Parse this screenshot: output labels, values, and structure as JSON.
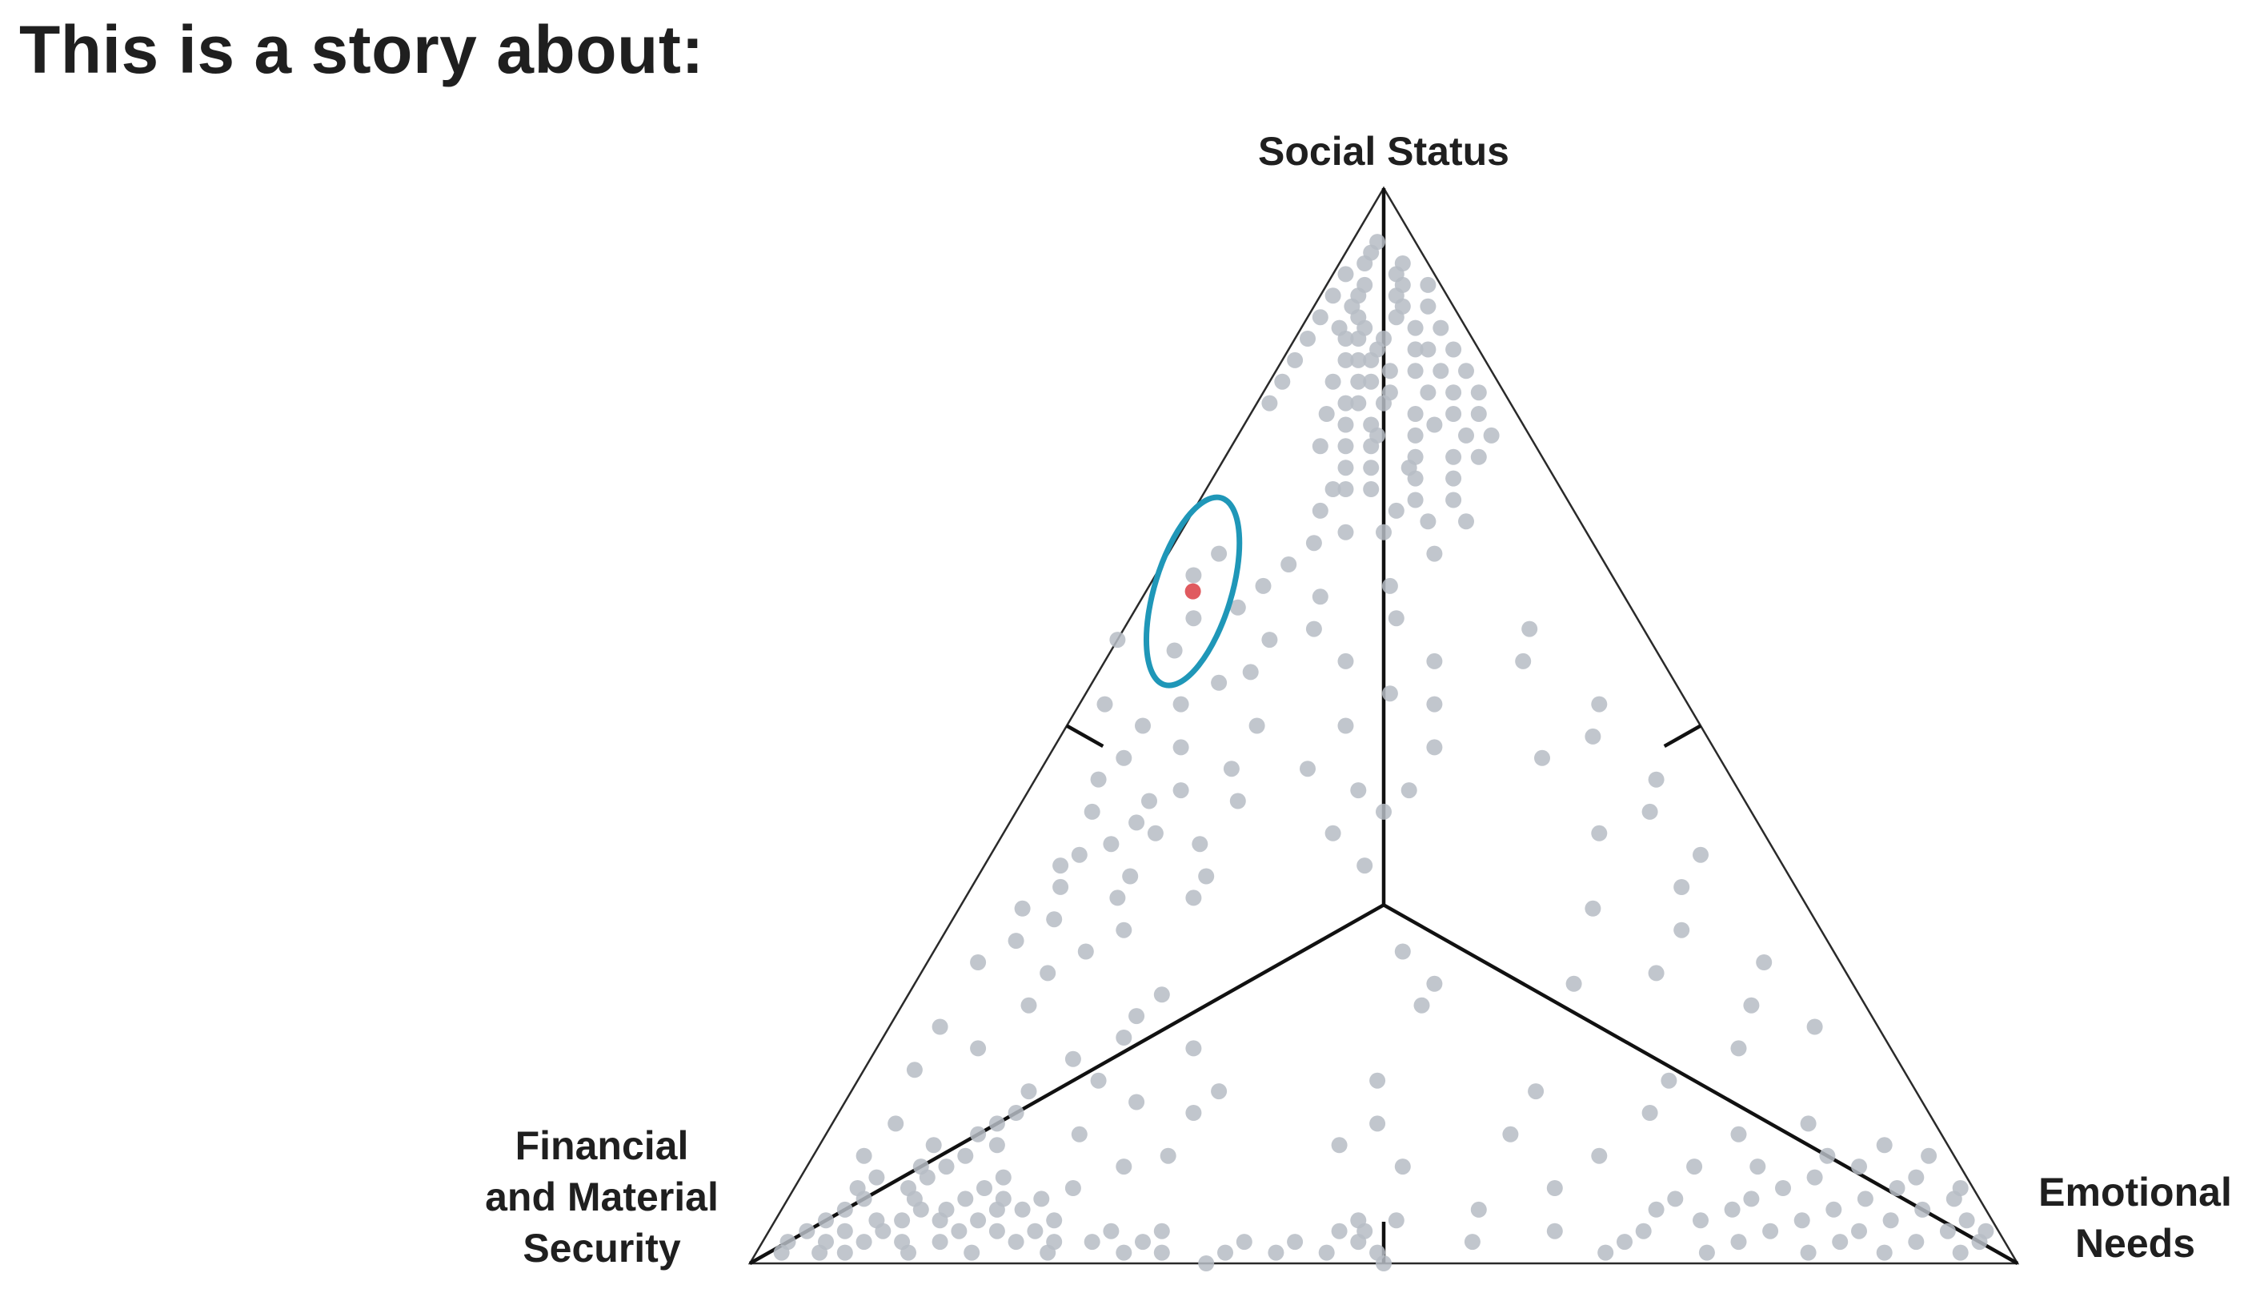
{
  "page": {
    "title": "This is a story about:"
  },
  "chart_data": {
    "type": "scatter",
    "subtype": "ternary",
    "title": "",
    "vertices": {
      "top": [
        "Social Status"
      ],
      "left": [
        "Financial",
        "and Material",
        "Security"
      ],
      "right": [
        "Emotional",
        "Needs"
      ]
    },
    "coordinate_note": "each point given as [Social Status, Financial and Material Security, Emotional Needs] shares summing to 1",
    "colors": {
      "points": "#b6bcc4",
      "highlight": "#e05a5f",
      "ellipse": "#1f97b8",
      "axes": "#111111"
    },
    "highlight_point": [
      0.625,
      0.338,
      0.037
    ],
    "confidence_ellipse": {
      "center": [
        0.625,
        0.338,
        0.037
      ]
    },
    "points": [
      [
        0.95,
        0.03,
        0.02
      ],
      [
        0.93,
        0.05,
        0.02
      ],
      [
        0.92,
        0.03,
        0.05
      ],
      [
        0.91,
        0.06,
        0.03
      ],
      [
        0.9,
        0.04,
        0.06
      ],
      [
        0.89,
        0.08,
        0.03
      ],
      [
        0.88,
        0.05,
        0.07
      ],
      [
        0.87,
        0.1,
        0.03
      ],
      [
        0.86,
        0.07,
        0.07
      ],
      [
        0.85,
        0.05,
        0.1
      ],
      [
        0.84,
        0.11,
        0.05
      ],
      [
        0.83,
        0.08,
        0.09
      ],
      [
        0.82,
        0.13,
        0.05
      ],
      [
        0.81,
        0.06,
        0.13
      ],
      [
        0.8,
        0.1,
        0.1
      ],
      [
        0.79,
        0.15,
        0.06
      ],
      [
        0.78,
        0.07,
        0.15
      ],
      [
        0.77,
        0.12,
        0.11
      ],
      [
        0.76,
        0.17,
        0.07
      ],
      [
        0.75,
        0.1,
        0.15
      ],
      [
        0.74,
        0.14,
        0.12
      ],
      [
        0.73,
        0.08,
        0.19
      ],
      [
        0.72,
        0.18,
        0.1
      ],
      [
        0.71,
        0.12,
        0.17
      ],
      [
        0.7,
        0.2,
        0.1
      ],
      [
        0.69,
        0.09,
        0.22
      ],
      [
        0.68,
        0.16,
        0.16
      ],
      [
        0.67,
        0.22,
        0.11
      ],
      [
        0.66,
        0.13,
        0.21
      ],
      [
        0.94,
        0.04,
        0.02
      ],
      [
        0.92,
        0.07,
        0.01
      ],
      [
        0.9,
        0.09,
        0.01
      ],
      [
        0.88,
        0.11,
        0.01
      ],
      [
        0.86,
        0.13,
        0.01
      ],
      [
        0.84,
        0.15,
        0.01
      ],
      [
        0.82,
        0.17,
        0.01
      ],
      [
        0.8,
        0.19,
        0.01
      ],
      [
        0.89,
        0.02,
        0.09
      ],
      [
        0.87,
        0.02,
        0.11
      ],
      [
        0.85,
        0.02,
        0.13
      ],
      [
        0.83,
        0.02,
        0.15
      ],
      [
        0.81,
        0.02,
        0.17
      ],
      [
        0.79,
        0.03,
        0.18
      ],
      [
        0.77,
        0.03,
        0.2
      ],
      [
        0.91,
        0.01,
        0.08
      ],
      [
        0.86,
        0.1,
        0.04
      ],
      [
        0.84,
        0.09,
        0.07
      ],
      [
        0.82,
        0.1,
        0.08
      ],
      [
        0.8,
        0.12,
        0.08
      ],
      [
        0.78,
        0.12,
        0.1
      ],
      [
        0.76,
        0.13,
        0.11
      ],
      [
        0.74,
        0.11,
        0.15
      ],
      [
        0.72,
        0.15,
        0.13
      ],
      [
        0.7,
        0.14,
        0.16
      ],
      [
        0.68,
        0.19,
        0.13
      ],
      [
        0.87,
        0.08,
        0.05
      ],
      [
        0.85,
        0.08,
        0.07
      ],
      [
        0.83,
        0.06,
        0.11
      ],
      [
        0.81,
        0.09,
        0.1
      ],
      [
        0.79,
        0.08,
        0.13
      ],
      [
        0.77,
        0.09,
        0.14
      ],
      [
        0.75,
        0.07,
        0.18
      ],
      [
        0.73,
        0.11,
        0.16
      ],
      [
        0.71,
        0.09,
        0.2
      ],
      [
        0.69,
        0.12,
        0.19
      ],
      [
        0.93,
        0.02,
        0.05
      ],
      [
        0.91,
        0.03,
        0.06
      ],
      [
        0.89,
        0.04,
        0.07
      ],
      [
        0.87,
        0.04,
        0.09
      ],
      [
        0.85,
        0.04,
        0.11
      ],
      [
        0.83,
        0.04,
        0.13
      ],
      [
        0.81,
        0.04,
        0.15
      ],
      [
        0.79,
        0.05,
        0.16
      ],
      [
        0.77,
        0.05,
        0.18
      ],
      [
        0.75,
        0.05,
        0.2
      ],
      [
        0.9,
        0.07,
        0.03
      ],
      [
        0.88,
        0.08,
        0.04
      ],
      [
        0.86,
        0.09,
        0.05
      ],
      [
        0.84,
        0.1,
        0.06
      ],
      [
        0.82,
        0.11,
        0.07
      ],
      [
        0.8,
        0.13,
        0.07
      ],
      [
        0.78,
        0.14,
        0.08
      ],
      [
        0.76,
        0.15,
        0.09
      ],
      [
        0.74,
        0.16,
        0.1
      ],
      [
        0.72,
        0.17,
        0.11
      ],
      [
        0.66,
        0.3,
        0.04
      ],
      [
        0.64,
        0.33,
        0.03
      ],
      [
        0.63,
        0.28,
        0.09
      ],
      [
        0.61,
        0.31,
        0.08
      ],
      [
        0.6,
        0.35,
        0.05
      ],
      [
        0.58,
        0.3,
        0.12
      ],
      [
        0.57,
        0.38,
        0.05
      ],
      [
        0.55,
        0.33,
        0.12
      ],
      [
        0.54,
        0.36,
        0.1
      ],
      [
        0.52,
        0.4,
        0.08
      ],
      [
        0.62,
        0.24,
        0.14
      ],
      [
        0.59,
        0.26,
        0.15
      ],
      [
        0.65,
        0.25,
        0.1
      ],
      [
        0.58,
        0.42,
        0.0
      ],
      [
        0.52,
        0.46,
        0.02
      ],
      [
        0.5,
        0.44,
        0.06
      ],
      [
        0.48,
        0.42,
        0.1
      ],
      [
        0.47,
        0.47,
        0.06
      ],
      [
        0.45,
        0.5,
        0.05
      ],
      [
        0.44,
        0.44,
        0.12
      ],
      [
        0.42,
        0.52,
        0.06
      ],
      [
        0.4,
        0.48,
        0.12
      ],
      [
        0.38,
        0.55,
        0.07
      ],
      [
        0.36,
        0.52,
        0.12
      ],
      [
        0.35,
        0.58,
        0.07
      ],
      [
        0.34,
        0.54,
        0.12
      ],
      [
        0.32,
        0.6,
        0.08
      ],
      [
        0.31,
        0.55,
        0.14
      ],
      [
        0.3,
        0.64,
        0.06
      ],
      [
        0.33,
        0.62,
        0.05
      ],
      [
        0.37,
        0.57,
        0.06
      ],
      [
        0.39,
        0.52,
        0.09
      ],
      [
        0.41,
        0.49,
        0.1
      ],
      [
        0.43,
        0.47,
        0.1
      ],
      [
        0.29,
        0.59,
        0.12
      ],
      [
        0.28,
        0.68,
        0.04
      ],
      [
        0.27,
        0.63,
        0.1
      ],
      [
        0.46,
        0.39,
        0.15
      ],
      [
        0.43,
        0.4,
        0.17
      ],
      [
        0.5,
        0.35,
        0.15
      ],
      [
        0.39,
        0.45,
        0.16
      ],
      [
        0.36,
        0.46,
        0.18
      ],
      [
        0.34,
        0.48,
        0.18
      ],
      [
        0.22,
        0.74,
        0.04
      ],
      [
        0.2,
        0.72,
        0.08
      ],
      [
        0.18,
        0.78,
        0.04
      ],
      [
        0.16,
        0.7,
        0.14
      ],
      [
        0.14,
        0.72,
        0.14
      ],
      [
        0.13,
        0.82,
        0.05
      ],
      [
        0.12,
        0.68,
        0.2
      ],
      [
        0.11,
        0.75,
        0.14
      ],
      [
        0.1,
        0.86,
        0.04
      ],
      [
        0.19,
        0.65,
        0.16
      ],
      [
        0.17,
        0.64,
        0.19
      ],
      [
        0.15,
        0.62,
        0.23
      ],
      [
        0.21,
        0.6,
        0.19
      ],
      [
        0.24,
        0.66,
        0.1
      ],
      [
        0.23,
        0.58,
        0.19
      ],
      [
        0.09,
        0.8,
        0.11
      ],
      [
        0.08,
        0.76,
        0.16
      ],
      [
        0.09,
        0.66,
        0.25
      ],
      [
        0.07,
        0.71,
        0.22
      ],
      [
        0.06,
        0.74,
        0.2
      ],
      [
        0.1,
        0.62,
        0.28
      ],
      [
        0.25,
        0.55,
        0.2
      ],
      [
        0.2,
        0.55,
        0.25
      ],
      [
        0.14,
        0.58,
        0.28
      ],
      [
        0.16,
        0.55,
        0.29
      ],
      [
        0.08,
        0.86,
        0.06
      ],
      [
        0.07,
        0.84,
        0.09
      ],
      [
        0.06,
        0.88,
        0.06
      ],
      [
        0.06,
        0.8,
        0.14
      ],
      [
        0.05,
        0.9,
        0.05
      ],
      [
        0.05,
        0.84,
        0.11
      ],
      [
        0.05,
        0.78,
        0.17
      ],
      [
        0.04,
        0.92,
        0.04
      ],
      [
        0.04,
        0.86,
        0.1
      ],
      [
        0.04,
        0.8,
        0.16
      ],
      [
        0.04,
        0.74,
        0.22
      ],
      [
        0.03,
        0.94,
        0.03
      ],
      [
        0.03,
        0.88,
        0.09
      ],
      [
        0.03,
        0.82,
        0.15
      ],
      [
        0.03,
        0.76,
        0.21
      ],
      [
        0.03,
        0.7,
        0.27
      ],
      [
        0.02,
        0.96,
        0.02
      ],
      [
        0.02,
        0.9,
        0.08
      ],
      [
        0.02,
        0.84,
        0.14
      ],
      [
        0.02,
        0.78,
        0.2
      ],
      [
        0.02,
        0.72,
        0.26
      ],
      [
        0.01,
        0.97,
        0.02
      ],
      [
        0.01,
        0.92,
        0.07
      ],
      [
        0.01,
        0.87,
        0.12
      ],
      [
        0.01,
        0.82,
        0.17
      ],
      [
        0.01,
        0.76,
        0.23
      ],
      [
        0.01,
        0.7,
        0.29
      ],
      [
        0.01,
        0.62,
        0.37
      ],
      [
        0.07,
        0.88,
        0.05
      ],
      [
        0.06,
        0.84,
        0.1
      ],
      [
        0.05,
        0.82,
        0.13
      ],
      [
        0.09,
        0.82,
        0.09
      ],
      [
        0.08,
        0.82,
        0.1
      ],
      [
        0.07,
        0.78,
        0.15
      ],
      [
        0.06,
        0.77,
        0.17
      ],
      [
        0.05,
        0.76,
        0.19
      ],
      [
        0.04,
        0.88,
        0.08
      ],
      [
        0.03,
        0.91,
        0.06
      ],
      [
        0.02,
        0.87,
        0.11
      ],
      [
        0.11,
        0.8,
        0.09
      ],
      [
        0.1,
        0.78,
        0.12
      ],
      [
        0.12,
        0.76,
        0.12
      ],
      [
        0.13,
        0.74,
        0.13
      ],
      [
        0.02,
        0.93,
        0.05
      ],
      [
        0.01,
        0.94,
        0.05
      ],
      [
        0.04,
        0.83,
        0.13
      ],
      [
        0.03,
        0.79,
        0.18
      ],
      [
        0.02,
        0.75,
        0.23
      ],
      [
        0.01,
        0.67,
        0.32
      ],
      [
        0.0,
        0.64,
        0.36
      ],
      [
        0.02,
        0.68,
        0.3
      ],
      [
        0.03,
        0.66,
        0.31
      ],
      [
        0.01,
        0.58,
        0.41
      ],
      [
        0.02,
        0.6,
        0.38
      ],
      [
        0.01,
        0.54,
        0.45
      ],
      [
        0.02,
        0.56,
        0.42
      ],
      [
        0.0,
        0.5,
        0.5
      ],
      [
        0.01,
        0.5,
        0.49
      ],
      [
        0.02,
        0.51,
        0.47
      ],
      [
        0.03,
        0.5,
        0.47
      ],
      [
        0.04,
        0.5,
        0.46
      ],
      [
        0.03,
        0.52,
        0.45
      ],
      [
        0.11,
        0.48,
        0.41
      ],
      [
        0.09,
        0.44,
        0.47
      ],
      [
        0.04,
        0.47,
        0.49
      ],
      [
        0.4,
        0.34,
        0.26
      ],
      [
        0.37,
        0.33,
        0.3
      ],
      [
        0.29,
        0.34,
        0.37
      ],
      [
        0.26,
        0.33,
        0.41
      ],
      [
        0.24,
        0.35,
        0.41
      ],
      [
        0.17,
        0.42,
        0.41
      ],
      [
        0.13,
        0.44,
        0.43
      ],
      [
        0.46,
        0.33,
        0.21
      ],
      [
        0.44,
        0.3,
        0.26
      ],
      [
        0.5,
        0.28,
        0.22
      ],
      [
        0.56,
        0.25,
        0.19
      ],
      [
        0.53,
        0.23,
        0.24
      ],
      [
        0.6,
        0.19,
        0.21
      ],
      [
        0.56,
        0.18,
        0.26
      ],
      [
        0.63,
        0.18,
        0.19
      ],
      [
        0.52,
        0.2,
        0.28
      ],
      [
        0.48,
        0.22,
        0.3
      ],
      [
        0.44,
        0.26,
        0.3
      ],
      [
        0.42,
        0.29,
        0.29
      ],
      [
        0.59,
        0.09,
        0.32
      ],
      [
        0.56,
        0.11,
        0.33
      ],
      [
        0.52,
        0.07,
        0.41
      ],
      [
        0.49,
        0.09,
        0.42
      ],
      [
        0.45,
        0.06,
        0.49
      ],
      [
        0.42,
        0.08,
        0.5
      ],
      [
        0.38,
        0.06,
        0.56
      ],
      [
        0.35,
        0.09,
        0.56
      ],
      [
        0.31,
        0.11,
        0.58
      ],
      [
        0.28,
        0.06,
        0.66
      ],
      [
        0.24,
        0.09,
        0.67
      ],
      [
        0.22,
        0.05,
        0.73
      ],
      [
        0.2,
        0.12,
        0.68
      ],
      [
        0.17,
        0.19,
        0.64
      ],
      [
        0.14,
        0.22,
        0.64
      ],
      [
        0.47,
        0.14,
        0.39
      ],
      [
        0.4,
        0.13,
        0.47
      ],
      [
        0.33,
        0.17,
        0.5
      ],
      [
        0.27,
        0.15,
        0.58
      ],
      [
        0.26,
        0.22,
        0.52
      ],
      [
        0.11,
        0.05,
        0.84
      ],
      [
        0.1,
        0.02,
        0.88
      ],
      [
        0.09,
        0.08,
        0.83
      ],
      [
        0.08,
        0.04,
        0.88
      ],
      [
        0.07,
        0.06,
        0.87
      ],
      [
        0.06,
        0.02,
        0.92
      ],
      [
        0.06,
        0.09,
        0.85
      ],
      [
        0.05,
        0.05,
        0.9
      ],
      [
        0.05,
        0.12,
        0.83
      ],
      [
        0.04,
        0.02,
        0.94
      ],
      [
        0.04,
        0.08,
        0.88
      ],
      [
        0.04,
        0.15,
        0.81
      ],
      [
        0.03,
        0.04,
        0.93
      ],
      [
        0.03,
        0.11,
        0.86
      ],
      [
        0.03,
        0.18,
        0.79
      ],
      [
        0.02,
        0.02,
        0.96
      ],
      [
        0.02,
        0.07,
        0.91
      ],
      [
        0.02,
        0.13,
        0.85
      ],
      [
        0.02,
        0.21,
        0.77
      ],
      [
        0.01,
        0.04,
        0.95
      ],
      [
        0.01,
        0.1,
        0.89
      ],
      [
        0.01,
        0.16,
        0.83
      ],
      [
        0.01,
        0.24,
        0.75
      ],
      [
        0.08,
        0.12,
        0.8
      ],
      [
        0.07,
        0.15,
        0.78
      ],
      [
        0.06,
        0.18,
        0.76
      ],
      [
        0.05,
        0.2,
        0.75
      ],
      [
        0.09,
        0.16,
        0.75
      ],
      [
        0.1,
        0.1,
        0.8
      ],
      [
        0.05,
        0.26,
        0.69
      ],
      [
        0.03,
        0.28,
        0.69
      ],
      [
        0.02,
        0.3,
        0.68
      ],
      [
        0.01,
        0.32,
        0.67
      ],
      [
        0.09,
        0.21,
        0.7
      ],
      [
        0.06,
        0.24,
        0.7
      ],
      [
        0.04,
        0.23,
        0.73
      ],
      [
        0.12,
        0.16,
        0.72
      ],
      [
        0.13,
        0.1,
        0.77
      ],
      [
        0.07,
        0.01,
        0.92
      ],
      [
        0.03,
        0.01,
        0.96
      ],
      [
        0.12,
        0.34,
        0.54
      ],
      [
        0.07,
        0.33,
        0.6
      ],
      [
        0.03,
        0.35,
        0.62
      ],
      [
        0.02,
        0.42,
        0.56
      ],
      [
        0.16,
        0.3,
        0.54
      ],
      [
        0.1,
        0.28,
        0.62
      ],
      [
        0.05,
        0.4,
        0.55
      ]
    ]
  }
}
